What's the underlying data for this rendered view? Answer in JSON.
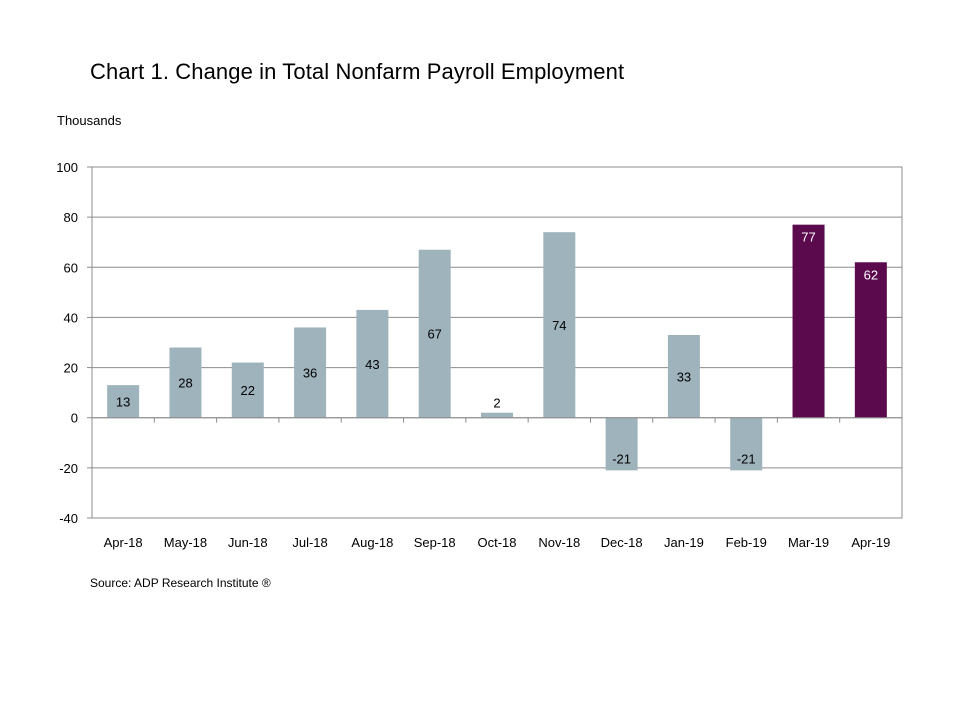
{
  "colors": {
    "bar_default": "#9fb3bd",
    "bar_highlight": "#5b0a4e",
    "grid": "#8c8c8c",
    "label_dark": "#000000",
    "label_light": "#ffffff"
  },
  "chart_data": {
    "type": "bar",
    "title": "Chart 1. Change in Total Nonfarm Payroll Employment",
    "ylabel": "Thousands",
    "xlabel": "",
    "source": "Source: ADP Research Institute ®",
    "categories": [
      "Apr-18",
      "May-18",
      "Jun-18",
      "Jul-18",
      "Aug-18",
      "Sep-18",
      "Oct-18",
      "Nov-18",
      "Dec-18",
      "Jan-19",
      "Feb-19",
      "Mar-19",
      "Apr-19"
    ],
    "values": [
      13,
      28,
      22,
      36,
      43,
      67,
      2,
      74,
      -21,
      33,
      -21,
      77,
      62
    ],
    "data_labels": [
      "13",
      "28",
      "22",
      "36",
      "43",
      "67",
      "2",
      "74",
      "-21",
      "33",
      "-21",
      "77",
      "62"
    ],
    "highlighted": [
      "Mar-19",
      "Apr-19"
    ],
    "ylim": [
      -40,
      100
    ],
    "yticks": [
      -40,
      -20,
      0,
      20,
      40,
      60,
      80,
      100
    ],
    "ytick_labels": [
      "-40",
      "-20",
      "0",
      "20",
      "40",
      "60",
      "80",
      "100"
    ],
    "grid": true,
    "legend": "none"
  }
}
